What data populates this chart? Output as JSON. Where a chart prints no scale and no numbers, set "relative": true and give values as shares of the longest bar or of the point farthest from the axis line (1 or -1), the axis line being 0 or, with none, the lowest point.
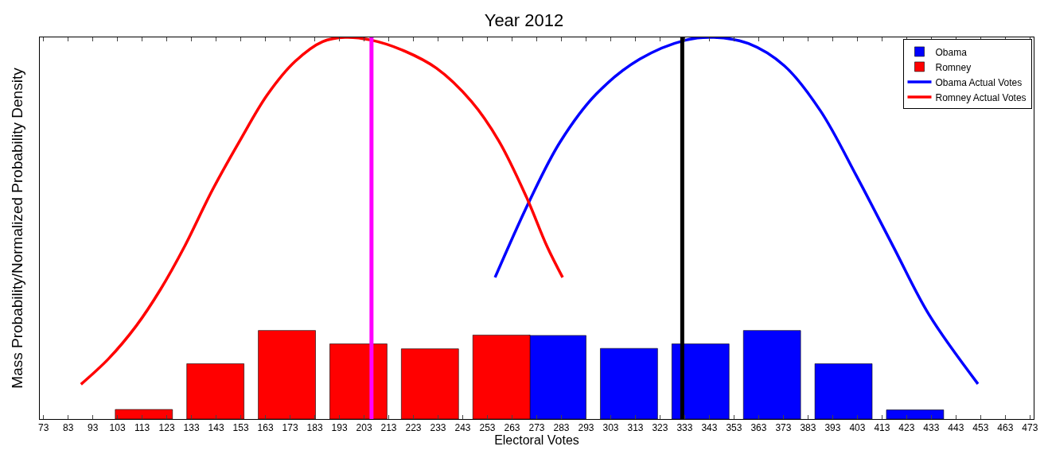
{
  "chart_data": {
    "type": "bar",
    "title": "Year 2012",
    "xlabel": "Electoral Votes",
    "ylabel": "Mass Probability/Normalized Probability Density",
    "relative": true,
    "legend": "top right",
    "xlim": [
      71.5,
      474.5
    ],
    "xticks": [
      73,
      83,
      93,
      103,
      113,
      123,
      133,
      143,
      153,
      163,
      173,
      183,
      193,
      203,
      213,
      223,
      233,
      243,
      253,
      263,
      273,
      283,
      293,
      303,
      313,
      323,
      333,
      343,
      353,
      363,
      373,
      383,
      393,
      403,
      413,
      423,
      433,
      443,
      453,
      463,
      473
    ],
    "series": [
      {
        "name": "Obama",
        "color": "#0000ff",
        "x": [
          281.4,
          310.4,
          339.4,
          368.4,
          397.4,
          426.4
        ],
        "values": [
          0.219,
          0.185,
          0.197,
          0.232,
          0.145,
          0.024
        ]
      },
      {
        "name": "Romney",
        "color": "#ff0000",
        "x": [
          113.7,
          142.7,
          171.7,
          200.7,
          229.7,
          258.7
        ],
        "values": [
          0.025,
          0.145,
          0.232,
          0.197,
          0.184,
          0.22
        ]
      },
      {
        "name": "Obama Actual Votes",
        "type": "line",
        "color": "#0000ff",
        "x": [
          256.1,
          270.1,
          282.5,
          297.2,
          314.8,
          333.5,
          344.8,
          358.8,
          373.5,
          388.1,
          402.8,
          417.4,
          432.1,
          451.9
        ],
        "values": [
          0.371,
          0.572,
          0.726,
          0.852,
          0.943,
          0.993,
          1.0,
          0.984,
          0.925,
          0.807,
          0.635,
          0.454,
          0.273,
          0.092
        ]
      },
      {
        "name": "Romney Actual Votes",
        "type": "line",
        "color": "#ff0000",
        "x": [
          88.2,
          99.4,
          110.6,
          120.4,
          130.2,
          141.4,
          152.6,
          163.8,
          175.0,
          186.2,
          195.3,
          205.8,
          218.4,
          232.4,
          246.4,
          257.6,
          268.8,
          277.2,
          283.5
        ],
        "values": [
          0.091,
          0.158,
          0.244,
          0.339,
          0.452,
          0.599,
          0.729,
          0.85,
          0.937,
          0.989,
          1.0,
          0.993,
          0.967,
          0.919,
          0.833,
          0.729,
          0.582,
          0.452,
          0.371
        ]
      }
    ],
    "ref_lines": [
      {
        "axis": "x",
        "value": 206,
        "color": "#ff00ff"
      },
      {
        "axis": "x",
        "value": 332,
        "color": "#000000"
      }
    ]
  }
}
